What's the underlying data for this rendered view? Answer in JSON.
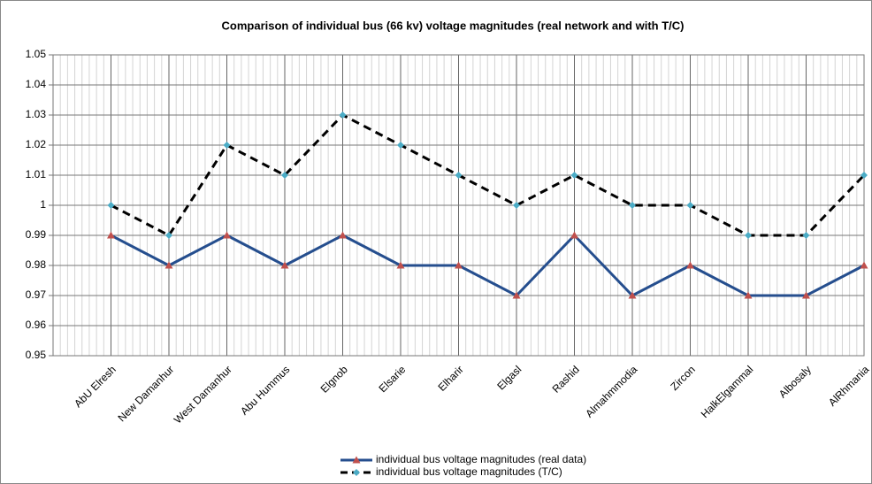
{
  "chart_data": {
    "type": "line",
    "title": "Comparison of individual bus (66 kv) voltage magnitudes (real network and with T/C)",
    "categories": [
      "AbU Elresh",
      "New Damanhur",
      "West Damanhur",
      "Abu Hummus",
      "Elgnob",
      "Elsarie",
      "Elharir",
      "Elgasl",
      "Rashid",
      "Almahmmodia",
      "Zircon",
      "HalkElgammal",
      "Albosaly",
      "AlRhmania"
    ],
    "series": [
      {
        "name": "individual bus  voltage magnitudes (real data)",
        "color": "#254e8e",
        "marker_color": "#c0504d",
        "marker": "triangle",
        "dash": false,
        "values": [
          0.99,
          0.98,
          0.99,
          0.98,
          0.99,
          0.98,
          0.98,
          0.97,
          0.99,
          0.97,
          0.98,
          0.97,
          0.97,
          0.98
        ]
      },
      {
        "name": "individual bus  voltage magnitudes (T/C)",
        "color": "#000000",
        "marker_color": "#4bacc6",
        "marker": "diamond",
        "dash": true,
        "values": [
          1,
          0.99,
          1.02,
          1.01,
          1.03,
          1.02,
          1.01,
          1,
          1.01,
          1,
          1,
          0.99,
          0.99,
          1.01
        ]
      }
    ],
    "ylim": [
      0.95,
      1.05
    ],
    "yticks": [
      0.95,
      0.96,
      0.97,
      0.98,
      0.99,
      1,
      1.01,
      1.02,
      1.03,
      1.04,
      1.05
    ],
    "grid": true,
    "legend": "bottom"
  }
}
